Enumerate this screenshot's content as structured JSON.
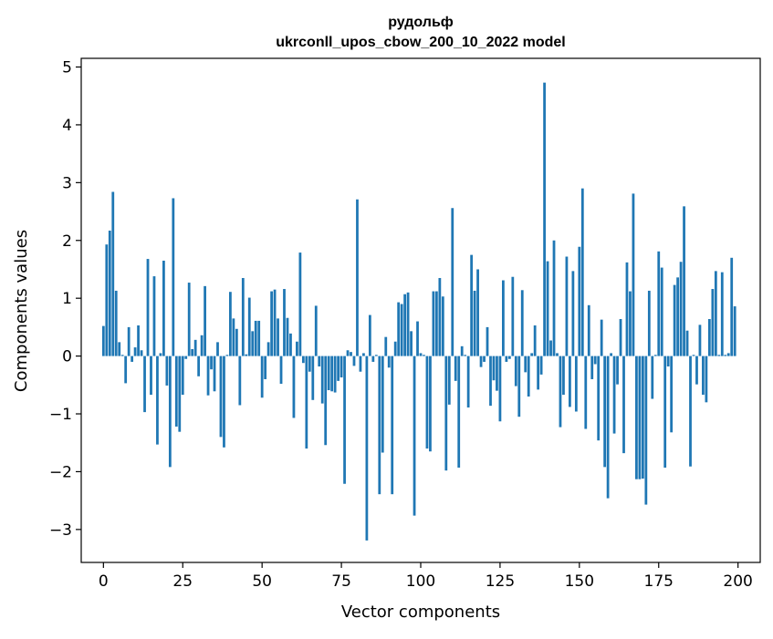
{
  "chart_data": {
    "type": "bar",
    "title": [
      "рудольф",
      "ukrconll_upos_cbow_200_10_2022 model"
    ],
    "xlabel": "Vector components",
    "ylabel": "Components values",
    "xlim": [
      -7,
      207
    ],
    "ylim": [
      -3.57,
      5.15
    ],
    "xticks": [
      0,
      25,
      50,
      75,
      100,
      125,
      150,
      175,
      200
    ],
    "yticks": [
      -3,
      -2,
      -1,
      0,
      1,
      2,
      3,
      4,
      5
    ],
    "bar_color": "#1f77b4",
    "grid": false,
    "x": [
      0,
      1,
      2,
      3,
      4,
      5,
      6,
      7,
      8,
      9,
      10,
      11,
      12,
      13,
      14,
      15,
      16,
      17,
      18,
      19,
      20,
      21,
      22,
      23,
      24,
      25,
      26,
      27,
      28,
      29,
      30,
      31,
      32,
      33,
      34,
      35,
      36,
      37,
      38,
      39,
      40,
      41,
      42,
      43,
      44,
      45,
      46,
      47,
      48,
      49,
      50,
      51,
      52,
      53,
      54,
      55,
      56,
      57,
      58,
      59,
      60,
      61,
      62,
      63,
      64,
      65,
      66,
      67,
      68,
      69,
      70,
      71,
      72,
      73,
      74,
      75,
      76,
      77,
      78,
      79,
      80,
      81,
      82,
      83,
      84,
      85,
      86,
      87,
      88,
      89,
      90,
      91,
      92,
      93,
      94,
      95,
      96,
      97,
      98,
      99,
      100,
      101,
      102,
      103,
      104,
      105,
      106,
      107,
      108,
      109,
      110,
      111,
      112,
      113,
      114,
      115,
      116,
      117,
      118,
      119,
      120,
      121,
      122,
      123,
      124,
      125,
      126,
      127,
      128,
      129,
      130,
      131,
      132,
      133,
      134,
      135,
      136,
      137,
      138,
      139,
      140,
      141,
      142,
      143,
      144,
      145,
      146,
      147,
      148,
      149,
      150,
      151,
      152,
      153,
      154,
      155,
      156,
      157,
      158,
      159,
      160,
      161,
      162,
      163,
      164,
      165,
      166,
      167,
      168,
      169,
      170,
      171,
      172,
      173,
      174,
      175,
      176,
      177,
      178,
      179,
      180,
      181,
      182,
      183,
      184,
      185,
      186,
      187,
      188,
      189,
      190,
      191,
      192,
      193,
      194,
      195,
      196,
      197,
      198,
      199
    ],
    "values": [
      0.52,
      1.93,
      2.17,
      2.84,
      1.13,
      0.24,
      0.02,
      -0.47,
      0.5,
      -0.1,
      0.15,
      0.53,
      0.1,
      -0.97,
      1.68,
      -0.67,
      1.38,
      -1.53,
      0.05,
      1.65,
      -0.51,
      -1.92,
      2.73,
      -1.22,
      -1.31,
      -0.67,
      -0.05,
      1.27,
      0.12,
      0.28,
      -0.35,
      0.36,
      1.21,
      -0.68,
      -0.23,
      -0.61,
      0.24,
      -1.4,
      -1.58,
      0.02,
      1.11,
      0.65,
      0.47,
      -0.85,
      1.35,
      0.03,
      1.01,
      0.43,
      0.61,
      0.61,
      -0.72,
      -0.4,
      0.24,
      1.12,
      1.15,
      0.65,
      -0.48,
      1.16,
      0.66,
      0.39,
      -1.07,
      0.25,
      1.79,
      -0.12,
      -1.6,
      -0.27,
      -0.76,
      0.87,
      -0.18,
      -0.82,
      -1.54,
      -0.59,
      -0.61,
      -0.63,
      -0.43,
      -0.37,
      -2.21,
      0.1,
      0.07,
      -0.17,
      2.71,
      -0.27,
      0.05,
      -3.19,
      0.71,
      -0.1,
      0.02,
      -2.39,
      -1.67,
      0.33,
      -0.2,
      -2.39,
      0.25,
      0.93,
      0.9,
      1.07,
      1.1,
      0.43,
      -2.76,
      0.6,
      0.05,
      0.02,
      -1.6,
      -1.65,
      1.12,
      1.12,
      1.35,
      1.03,
      -1.98,
      -0.84,
      2.56,
      -0.43,
      -1.93,
      0.17,
      0.02,
      -0.89,
      1.75,
      1.13,
      1.5,
      -0.19,
      -0.1,
      0.5,
      -0.86,
      -0.42,
      -0.6,
      -1.13,
      1.31,
      -0.1,
      -0.05,
      1.37,
      -0.52,
      -1.05,
      1.14,
      -0.28,
      -0.7,
      0.05,
      0.53,
      -0.58,
      -0.32,
      4.73,
      1.64,
      0.27,
      2.0,
      0.05,
      -1.23,
      -0.67,
      1.72,
      -0.88,
      1.47,
      -0.96,
      1.89,
      2.9,
      -1.26,
      0.88,
      -0.4,
      -0.14,
      -1.46,
      0.63,
      -1.92,
      -2.46,
      0.05,
      -1.34,
      -0.49,
      0.64,
      -1.68,
      1.62,
      1.12,
      2.81,
      -2.13,
      -2.13,
      -2.12,
      -2.57,
      1.13,
      -0.74,
      0.02,
      1.81,
      1.53,
      -1.93,
      -0.18,
      -1.32,
      1.23,
      1.36,
      1.63,
      2.59,
      0.44,
      -1.91,
      0.02,
      -0.49,
      0.54,
      -0.67,
      -0.8,
      0.64,
      1.16,
      1.47,
      0.02,
      1.45,
      0.02,
      0.05,
      1.7,
      0.86
    ]
  }
}
